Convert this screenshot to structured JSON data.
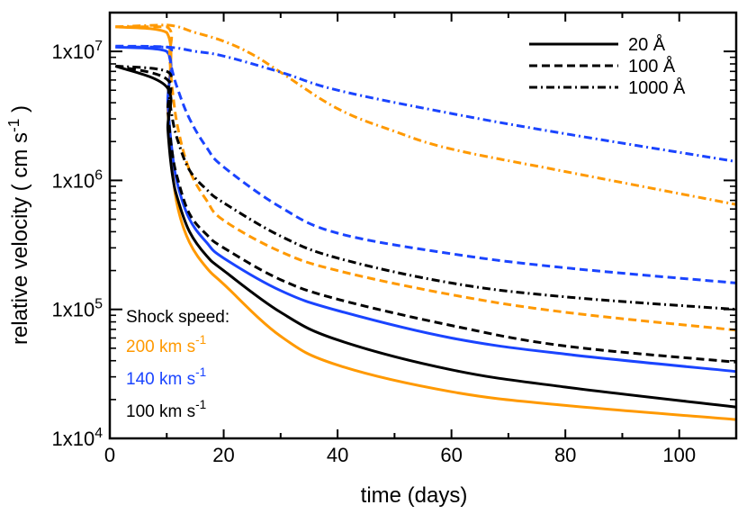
{
  "chart_data": {
    "type": "line",
    "title": "",
    "xlabel": "time (days)",
    "ylabel": "relative velocity ( cm s",
    "ylabel_sup": "-1",
    "ylabel_end": " )",
    "xlim": [
      0,
      110
    ],
    "ylim": [
      10000,
      20000000
    ],
    "yscale": "log",
    "x_ticks": [
      0,
      20,
      40,
      60,
      80,
      100
    ],
    "x_tick_labels": [
      "0",
      "20",
      "40",
      "60",
      "80",
      "100"
    ],
    "y_ticks": [
      10000,
      100000,
      1000000,
      10000000
    ],
    "y_tick_labels": [
      {
        "base": "1x10",
        "exp": "4"
      },
      {
        "base": "1x10",
        "exp": "5"
      },
      {
        "base": "1x10",
        "exp": "6"
      },
      {
        "base": "1x10",
        "exp": "7"
      }
    ],
    "grid": false,
    "legend": {
      "placement": "top-right",
      "entries": [
        {
          "label": "20 Å",
          "style": "solid"
        },
        {
          "label": "100 Å",
          "style": "dashed"
        },
        {
          "label": "1000 Å",
          "style": "dashdot"
        }
      ]
    },
    "annotation": {
      "title": "Shock speed:",
      "entries": [
        {
          "label": "200 km s",
          "sup": "-1",
          "color": "#ff9900"
        },
        {
          "label": "140 km s",
          "sup": "-1",
          "color": "#1a44ff"
        },
        {
          "label": "100 km s",
          "sup": "-1",
          "color": "#000000"
        }
      ]
    },
    "series": [
      {
        "name": "200 km/s, 20 Å",
        "color": "#ff9900",
        "style": "solid",
        "x": [
          1,
          10,
          10.2,
          11,
          12,
          14,
          17,
          20,
          30,
          40,
          60,
          80,
          110
        ],
        "y": [
          15500000,
          14000000,
          3500000,
          1200000,
          600000,
          330000,
          210000,
          157000,
          62000,
          37000,
          23000,
          18000,
          14000
        ]
      },
      {
        "name": "140 km/s, 20 Å",
        "color": "#1a44ff",
        "style": "solid",
        "x": [
          1,
          10,
          10.2,
          11,
          12,
          14,
          17,
          20,
          30,
          40,
          60,
          80,
          110
        ],
        "y": [
          10800000,
          10000000,
          4000000,
          1600000,
          900000,
          500000,
          330000,
          250000,
          140000,
          98000,
          60000,
          45000,
          33000
        ]
      },
      {
        "name": "100 km/s, 20 Å",
        "color": "#000000",
        "style": "solid",
        "x": [
          1,
          10,
          10.2,
          11,
          12,
          14,
          17,
          20,
          30,
          40,
          60,
          80,
          110
        ],
        "y": [
          7700000,
          5300000,
          2500000,
          1100000,
          700000,
          400000,
          260000,
          200000,
          95000,
          58000,
          34000,
          25000,
          17500
        ]
      },
      {
        "name": "200 km/s, 100 Å",
        "color": "#ff9900",
        "style": "dashed",
        "x": [
          1,
          10,
          10.5,
          11,
          12,
          14,
          17,
          20,
          30,
          40,
          60,
          80,
          110
        ],
        "y": [
          15500000,
          15500000,
          9000000,
          5000000,
          2500000,
          1200000,
          700000,
          490000,
          280000,
          200000,
          130000,
          95000,
          69000
        ]
      },
      {
        "name": "140 km/s, 100 Å",
        "color": "#1a44ff",
        "style": "dashed",
        "x": [
          1,
          10,
          10.5,
          11,
          12,
          14,
          17,
          20,
          30,
          40,
          60,
          80,
          110
        ],
        "y": [
          11000000,
          10800000,
          9000000,
          7000000,
          5000000,
          3000000,
          1800000,
          1270000,
          620000,
          390000,
          270000,
          210000,
          160000
        ]
      },
      {
        "name": "100 km/s, 100 Å",
        "color": "#000000",
        "style": "dashed",
        "x": [
          1,
          10,
          10.2,
          11,
          12,
          14,
          17,
          20,
          30,
          40,
          60,
          80,
          110
        ],
        "y": [
          7700000,
          6100000,
          3500000,
          1600000,
          1000000,
          550000,
          380000,
          300000,
          170000,
          120000,
          75000,
          52000,
          39000
        ]
      },
      {
        "name": "200 km/s, 1000 Å",
        "color": "#ff9900",
        "style": "dashdot",
        "x": [
          1,
          10,
          15,
          20,
          25,
          30,
          40,
          50,
          60,
          80,
          110
        ],
        "y": [
          15500000,
          16000000,
          14000000,
          12000000,
          9500000,
          6900000,
          3600000,
          2400000,
          1750000,
          1170000,
          650000
        ]
      },
      {
        "name": "140 km/s, 1000 Å",
        "color": "#1a44ff",
        "style": "dashdot",
        "x": [
          1,
          10,
          15,
          20,
          30,
          40,
          60,
          80,
          110
        ],
        "y": [
          10800000,
          10800000,
          10000000,
          9200000,
          6900000,
          5000000,
          3300000,
          2300000,
          1400000
        ]
      },
      {
        "name": "100 km/s, 1000 Å",
        "color": "#000000",
        "style": "dashdot",
        "x": [
          1,
          10,
          10.3,
          11,
          12,
          14,
          17,
          20,
          30,
          40,
          60,
          80,
          110
        ],
        "y": [
          7700000,
          7000000,
          5000000,
          3000000,
          2000000,
          1200000,
          850000,
          670000,
          370000,
          250000,
          160000,
          125000,
          100000
        ]
      }
    ]
  }
}
